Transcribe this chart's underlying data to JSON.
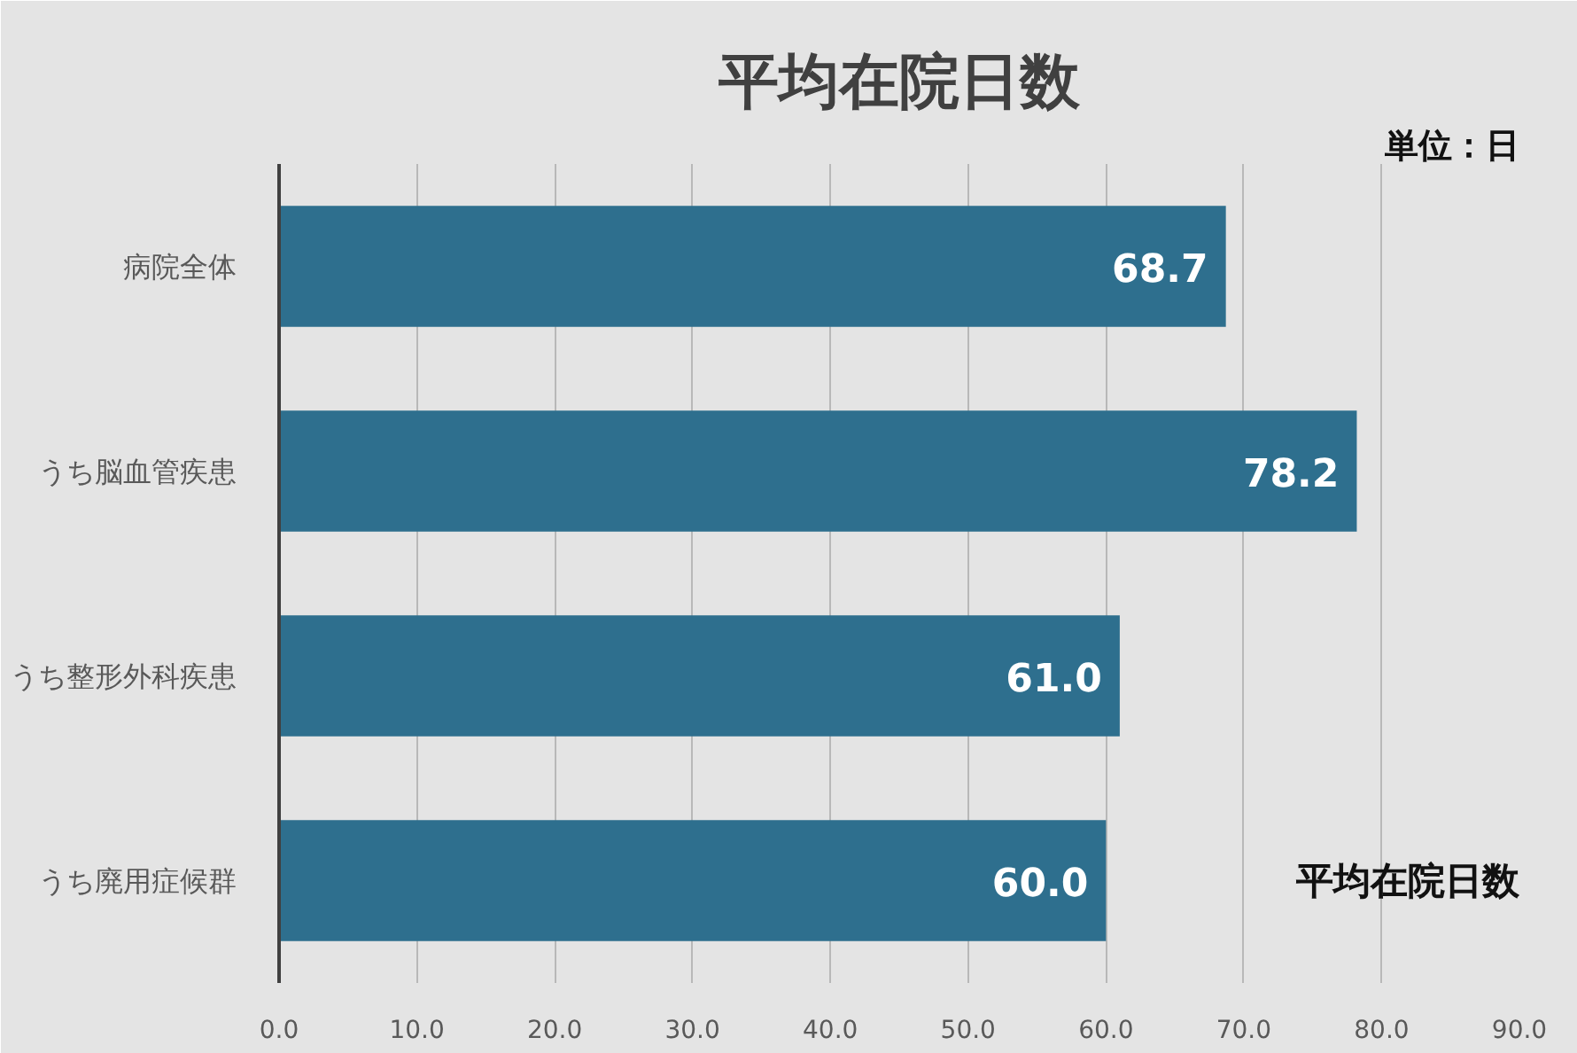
{
  "chart_data": {
    "type": "bar",
    "orientation": "horizontal",
    "title": "平均在院日数",
    "categories": [
      "病院全体",
      "うち脳血管疾患",
      "うち整形外科疾患",
      "うち廃用症候群"
    ],
    "values": [
      68.7,
      78.2,
      61.0,
      60.0
    ],
    "value_labels": [
      "68.7",
      "78.2",
      "61.0",
      "60.0"
    ],
    "color": "#2e6f8e",
    "xlim": [
      0,
      90
    ],
    "xticks": [
      {
        "value": 0,
        "label": "0.0"
      },
      {
        "value": 10,
        "label": "10.0"
      },
      {
        "value": 20,
        "label": "20.0"
      },
      {
        "value": 30,
        "label": "30.0"
      },
      {
        "value": 40,
        "label": "40.0"
      },
      {
        "value": 50,
        "label": "50.0"
      },
      {
        "value": 60,
        "label": "60.0"
      },
      {
        "value": 70,
        "label": "70.0"
      },
      {
        "value": 80,
        "label": "80.0"
      },
      {
        "value": 90,
        "label": "90.0"
      }
    ],
    "grid": "x",
    "annotations": [
      "単位：日",
      "平均在院日数"
    ]
  }
}
